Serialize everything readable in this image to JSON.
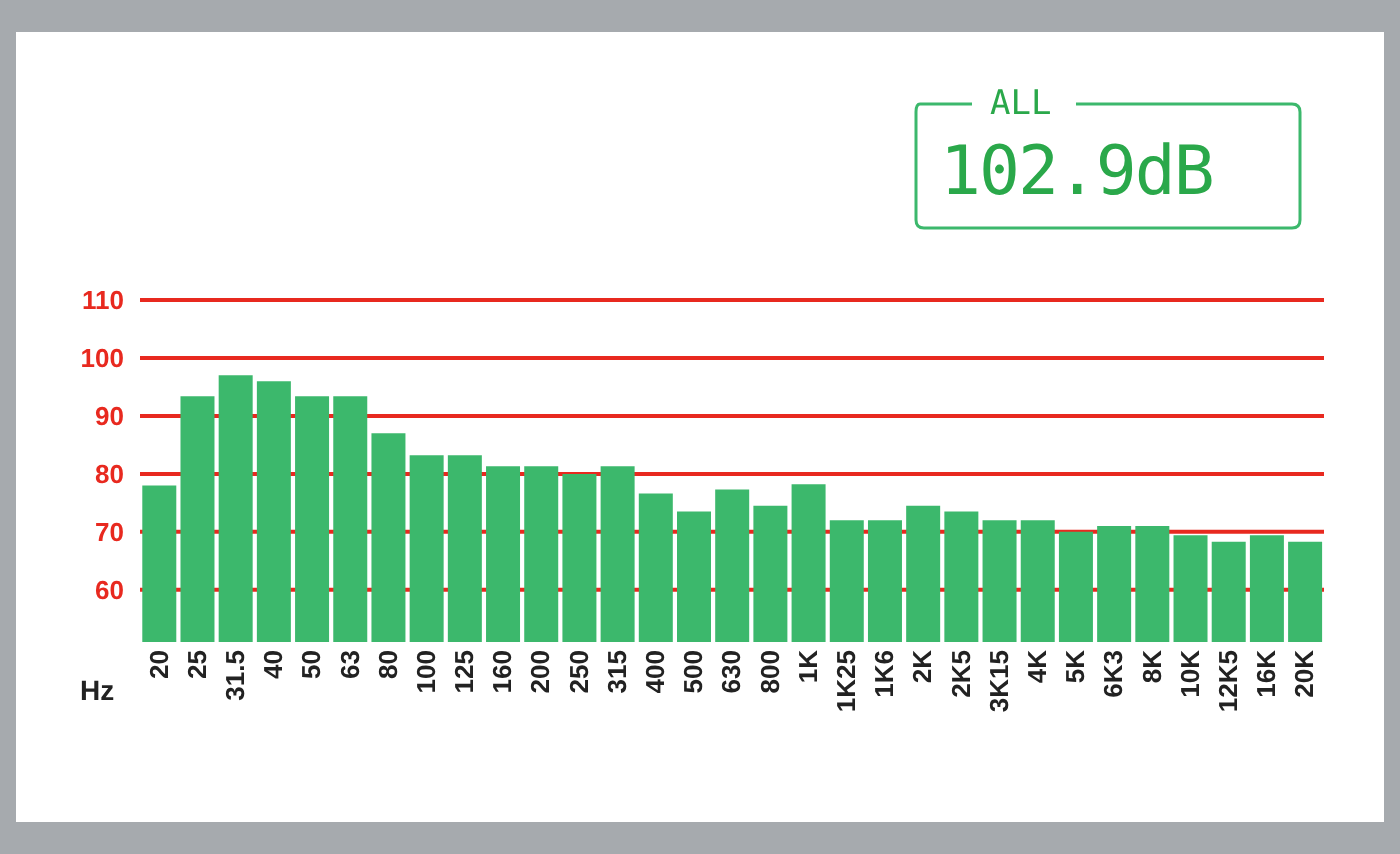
{
  "chart_data": {
    "type": "bar",
    "categories": [
      "20",
      "25",
      "31.5",
      "40",
      "50",
      "63",
      "80",
      "100",
      "125",
      "160",
      "200",
      "250",
      "315",
      "400",
      "500",
      "630",
      "800",
      "1K",
      "1K25",
      "1K6",
      "2K",
      "2K5",
      "3K15",
      "4K",
      "5K",
      "6K3",
      "8K",
      "10K",
      "12K5",
      "16K",
      "20K"
    ],
    "values": [
      78,
      93.4,
      97,
      96,
      93.4,
      93.4,
      87,
      83.2,
      83.2,
      81.3,
      81.3,
      80,
      81.3,
      76.6,
      73.5,
      77.3,
      74.5,
      78.2,
      72,
      72,
      74.5,
      73.5,
      72,
      72,
      70,
      71,
      71,
      69.4,
      68.3,
      69.4,
      68.3
    ],
    "color": "#3cb86c",
    "xlabel": "Hz",
    "ylim": [
      51,
      110
    ],
    "yticks": [
      60,
      70,
      80,
      90,
      100,
      110
    ],
    "grid": "y",
    "annotations": [
      "ALL",
      "102.9dB"
    ]
  }
}
